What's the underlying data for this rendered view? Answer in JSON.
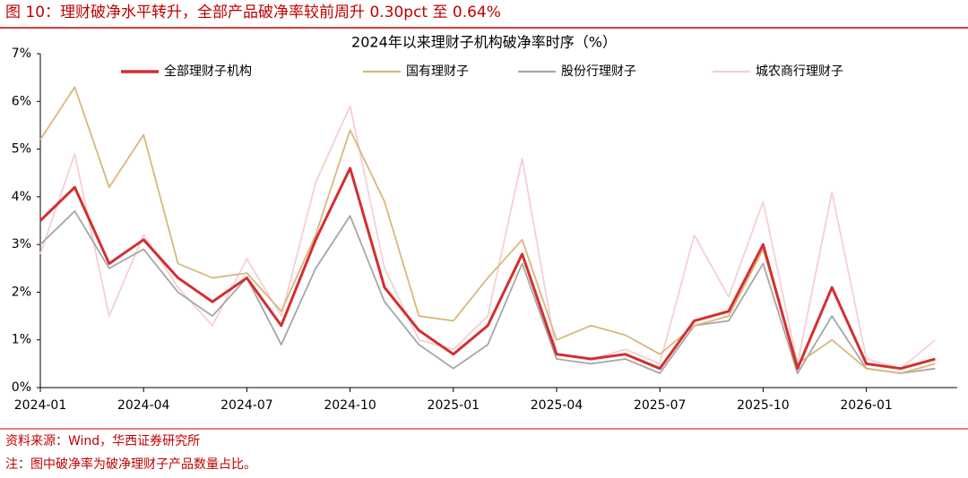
{
  "header": "图 10：理财破净水平转升，全部产品破净率较前周升 0.30pct 至 0.64%",
  "chart_data": {
    "type": "line",
    "title": "2024年以来理财子机构破净率时序（%）",
    "x": [
      "2024-01",
      "2024-02",
      "2024-03",
      "2024-04",
      "2024-05",
      "2024-06",
      "2024-07",
      "2024-08",
      "2024-09",
      "2024-10",
      "2024-11",
      "2024-12",
      "2025-01",
      "2025-02",
      "2025-03",
      "2025-04",
      "2025-05",
      "2025-06",
      "2025-07",
      "2025-08",
      "2025-09",
      "2025-10",
      "2025-11",
      "2025-12",
      "2026-01",
      "2026-02",
      "2026-03"
    ],
    "xticks": [
      "2024-01",
      "2024-04",
      "2024-07",
      "2024-10",
      "2025-01",
      "2025-04",
      "2025-07",
      "2025-10",
      "2026-01"
    ],
    "ylim": [
      0,
      7
    ],
    "yticks": [
      {
        "value": 0,
        "label": "0%"
      },
      {
        "value": 1,
        "label": "1%"
      },
      {
        "value": 2,
        "label": "2%"
      },
      {
        "value": 3,
        "label": "3%"
      },
      {
        "value": 4,
        "label": "4%"
      },
      {
        "value": 5,
        "label": "5%"
      },
      {
        "value": 6,
        "label": "6%"
      },
      {
        "value": 7,
        "label": "7%"
      }
    ],
    "series": [
      {
        "name": "全部理财子机构",
        "color": "#d32f2f",
        "width": 3,
        "values": [
          3.5,
          4.2,
          2.6,
          3.1,
          2.3,
          1.8,
          2.3,
          1.3,
          3.1,
          4.6,
          2.1,
          1.2,
          0.7,
          1.3,
          2.8,
          0.7,
          0.6,
          0.7,
          0.4,
          1.4,
          1.6,
          3.0,
          0.4,
          2.1,
          0.5,
          0.4,
          0.6
        ]
      },
      {
        "name": "国有理财子",
        "color": "#d9b77c",
        "width": 1.8,
        "values": [
          5.2,
          6.3,
          4.2,
          5.3,
          2.6,
          2.3,
          2.4,
          1.6,
          3.2,
          5.4,
          3.9,
          1.5,
          1.4,
          2.3,
          3.1,
          1.0,
          1.3,
          1.1,
          0.7,
          1.3,
          1.5,
          2.9,
          0.5,
          1.0,
          0.4,
          0.3,
          0.5
        ]
      },
      {
        "name": "股份行理财子",
        "color": "#a6a6a6",
        "width": 1.8,
        "values": [
          3.0,
          3.7,
          2.5,
          2.9,
          2.0,
          1.5,
          2.3,
          0.9,
          2.5,
          3.6,
          1.8,
          0.9,
          0.4,
          0.9,
          2.6,
          0.6,
          0.5,
          0.6,
          0.3,
          1.3,
          1.4,
          2.6,
          0.3,
          1.5,
          0.4,
          0.3,
          0.4
        ]
      },
      {
        "name": "城农商行理财子",
        "color": "#f6cfd2",
        "width": 1.8,
        "values": [
          2.8,
          4.9,
          1.5,
          3.2,
          2.1,
          1.3,
          2.7,
          1.5,
          4.3,
          5.9,
          2.5,
          1.0,
          0.8,
          1.5,
          4.8,
          0.7,
          0.6,
          0.8,
          0.5,
          3.2,
          1.9,
          3.9,
          0.5,
          4.1,
          0.6,
          0.4,
          1.0
        ]
      }
    ]
  },
  "source": "资料来源：Wind，华西证券研究所",
  "note": "注：图中破净率为破净理财子产品数量占比。"
}
